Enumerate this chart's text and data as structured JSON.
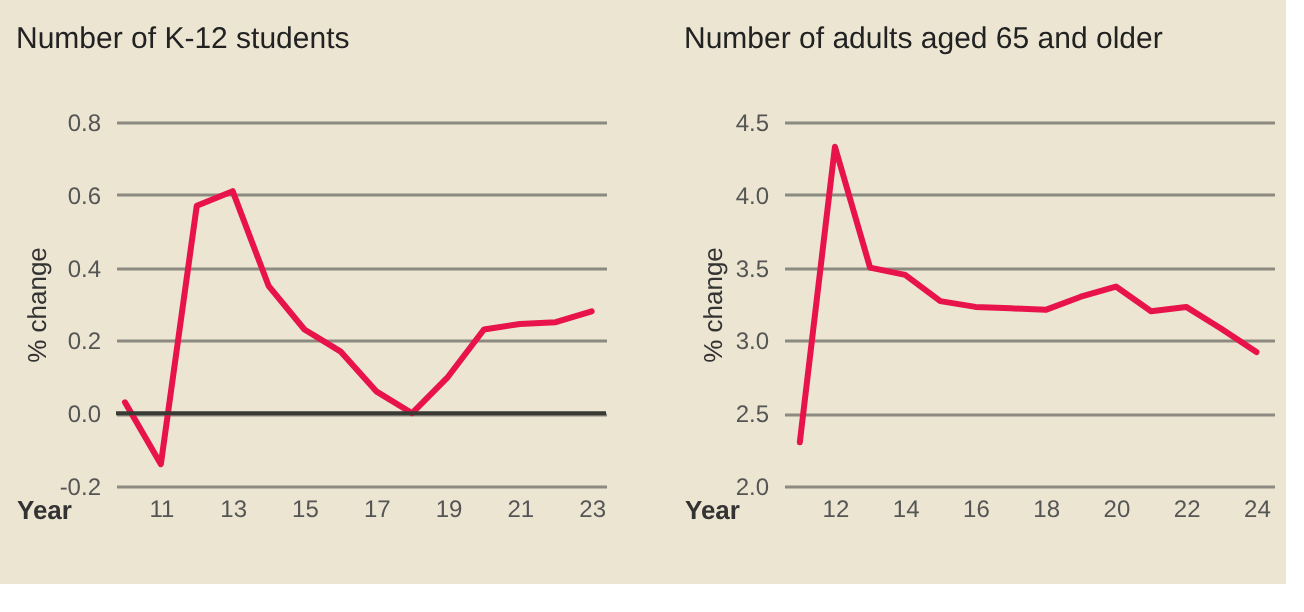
{
  "chart_data": [
    {
      "type": "line",
      "title": "Number of K-12 students",
      "xlabel": "Year",
      "ylabel": "% change",
      "x": [
        10,
        11,
        12,
        13,
        14,
        15,
        16,
        17,
        18,
        19,
        20,
        21,
        22,
        23
      ],
      "series": [
        {
          "color": "#e8134a",
          "values": [
            0.03,
            -0.14,
            0.57,
            0.61,
            0.35,
            0.23,
            0.17,
            0.06,
            0.0,
            0.1,
            0.23,
            0.245,
            0.25,
            0.28
          ]
        }
      ],
      "xlim": [
        9.75,
        23.4
      ],
      "xticks": [
        11,
        13,
        15,
        17,
        19,
        21,
        23
      ],
      "ylim": [
        -0.2,
        0.8
      ],
      "yticks": [
        {
          "value": -0.2,
          "label": "-0.2"
        },
        {
          "value": 0,
          "label": "0.0"
        },
        0.2,
        0.4,
        0.6,
        0.8
      ],
      "ref_lines": [
        {
          "axis": "y",
          "value": 0,
          "color": "#3a3a34"
        }
      ],
      "grid": "y",
      "legend": false,
      "marker": "none",
      "line_style": "solid"
    },
    {
      "type": "line",
      "title": "Number of adults aged 65 and older",
      "xlabel": "Year",
      "ylabel": "% change",
      "x": [
        11,
        12,
        13,
        14,
        15,
        16,
        17,
        18,
        19,
        20,
        21,
        22,
        23,
        24
      ],
      "series": [
        {
          "color": "#e8134a",
          "values": [
            2.3,
            4.33,
            3.5,
            3.45,
            3.27,
            3.23,
            3.22,
            3.21,
            3.3,
            3.37,
            3.2,
            3.23,
            3.08,
            2.92
          ]
        }
      ],
      "xlim": [
        10.55,
        24.5
      ],
      "xticks": [
        12,
        14,
        16,
        18,
        20,
        22,
        24
      ],
      "ylim": [
        2.0,
        4.5
      ],
      "yticks": [
        {
          "value": 2.0,
          "label": "2.0"
        },
        2.5,
        {
          "value": 3.0,
          "label": "3.0"
        },
        3.5,
        {
          "value": 4.0,
          "label": "4.0"
        },
        4.5
      ],
      "grid": "y",
      "legend": false,
      "marker": "none",
      "line_style": "solid"
    }
  ]
}
